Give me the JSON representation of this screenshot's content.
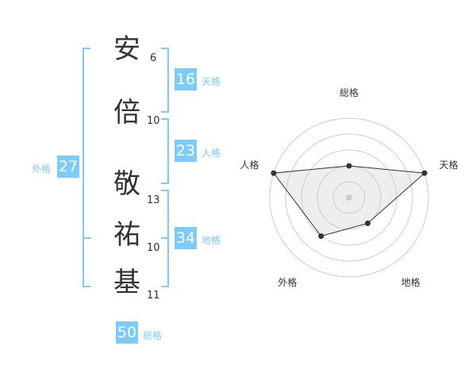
{
  "name": {
    "chars": [
      {
        "char": "安",
        "strokes": "6"
      },
      {
        "char": "倍",
        "strokes": "10"
      },
      {
        "char": "敬",
        "strokes": "13"
      },
      {
        "char": "祐",
        "strokes": "10"
      },
      {
        "char": "基",
        "strokes": "11"
      }
    ]
  },
  "fortunes": {
    "tenkaku": {
      "value": "16",
      "label": "天格"
    },
    "jinkaku": {
      "value": "23",
      "label": "人格"
    },
    "chikaku": {
      "value": "34",
      "label": "地格"
    },
    "gaikaku": {
      "value": "27",
      "label": "外格"
    },
    "soukaku": {
      "value": "50",
      "label": "総格"
    }
  },
  "accent_color": "#7dcbf7",
  "chart_data": {
    "type": "radar",
    "axes": [
      "総格",
      "天格",
      "地格",
      "外格",
      "人格"
    ],
    "values": [
      2,
      5,
      2,
      3,
      5
    ],
    "range": [
      0,
      5
    ],
    "rings": 5
  }
}
